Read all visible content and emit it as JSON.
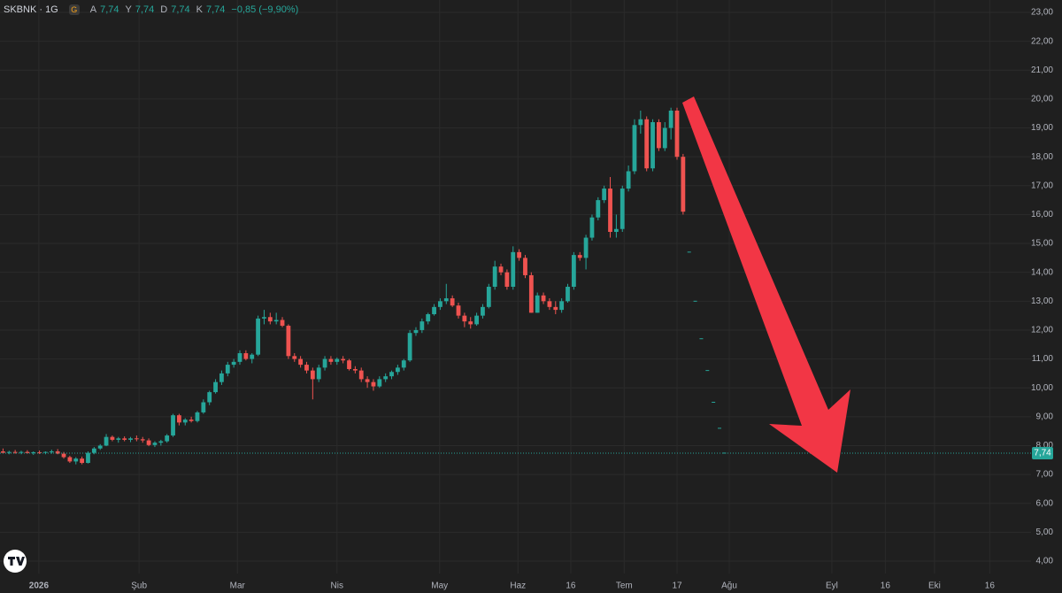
{
  "header": {
    "symbol": "SKBNK · 1G",
    "badge": "G",
    "ohlc": [
      {
        "label": "A",
        "value": "7,74"
      },
      {
        "label": "Y",
        "value": "7,74"
      },
      {
        "label": "D",
        "value": "7,74"
      },
      {
        "label": "K",
        "value": "7,74"
      }
    ],
    "change": "−0,85 (−9,90%)"
  },
  "chart_data": {
    "type": "candlestick",
    "up_color": "#26a69a",
    "down_color": "#ef5350",
    "xlim": [
      -0.5,
      169.3
    ],
    "ylim": [
      3.57,
      23.43
    ],
    "grid": true,
    "xticks": [
      {
        "value": 5.9,
        "label": "2026"
      },
      {
        "value": 22.4,
        "label": "Şub"
      },
      {
        "value": 38.6,
        "label": "Mar"
      },
      {
        "value": 55.0,
        "label": "Nis"
      },
      {
        "value": 71.9,
        "label": "May"
      },
      {
        "value": 84.8,
        "label": "Haz"
      },
      {
        "value": 93.5,
        "label": "16"
      },
      {
        "value": 102.3,
        "label": "Tem"
      },
      {
        "value": 111.0,
        "label": "17"
      },
      {
        "value": 119.6,
        "label": "Ağu"
      },
      {
        "value": 136.5,
        "label": "Eyl"
      },
      {
        "value": 145.3,
        "label": "16"
      },
      {
        "value": 153.4,
        "label": "Eki"
      },
      {
        "value": 162.5,
        "label": "16"
      }
    ],
    "yticks": [
      {
        "value": 4,
        "label": "4,00"
      },
      {
        "value": 5,
        "label": "5,00"
      },
      {
        "value": 6,
        "label": "6,00"
      },
      {
        "value": 7,
        "label": "7,00"
      },
      {
        "value": 8,
        "label": "8,00"
      },
      {
        "value": 9,
        "label": "9,00"
      },
      {
        "value": 10,
        "label": "10,00"
      },
      {
        "value": 11,
        "label": "11,00"
      },
      {
        "value": 12,
        "label": "12,00"
      },
      {
        "value": 13,
        "label": "13,00"
      },
      {
        "value": 14,
        "label": "14,00"
      },
      {
        "value": 15,
        "label": "15,00"
      },
      {
        "value": 16,
        "label": "16,00"
      },
      {
        "value": 17,
        "label": "17,00"
      },
      {
        "value": 18,
        "label": "18,00"
      },
      {
        "value": 19,
        "label": "19,00"
      },
      {
        "value": 20,
        "label": "20,00"
      },
      {
        "value": 21,
        "label": "21,00"
      },
      {
        "value": 22,
        "label": "22,00"
      },
      {
        "value": 23,
        "label": "23,00"
      }
    ],
    "last_price": {
      "value": 7.74,
      "label": "7,74"
    },
    "projection": {
      "x": [
        113,
        114,
        115,
        116,
        117,
        118,
        118.8
      ],
      "values": [
        14.7,
        13.0,
        11.7,
        10.6,
        9.5,
        8.6,
        7.74
      ]
    },
    "candles": [
      [
        7.8,
        7.9,
        7.72,
        7.75
      ],
      [
        7.75,
        7.82,
        7.7,
        7.78
      ],
      [
        7.78,
        7.85,
        7.72,
        7.76
      ],
      [
        7.76,
        7.82,
        7.7,
        7.78
      ],
      [
        7.78,
        7.84,
        7.72,
        7.74
      ],
      [
        7.74,
        7.8,
        7.68,
        7.77
      ],
      [
        7.77,
        7.83,
        7.71,
        7.75
      ],
      [
        7.75,
        7.8,
        7.7,
        7.78
      ],
      [
        7.78,
        7.86,
        7.72,
        7.8
      ],
      [
        7.8,
        7.88,
        7.7,
        7.72
      ],
      [
        7.72,
        7.78,
        7.55,
        7.6
      ],
      [
        7.6,
        7.65,
        7.4,
        7.45
      ],
      [
        7.45,
        7.6,
        7.35,
        7.55
      ],
      [
        7.55,
        7.62,
        7.35,
        7.4
      ],
      [
        7.4,
        7.8,
        7.38,
        7.75
      ],
      [
        7.75,
        7.95,
        7.7,
        7.9
      ],
      [
        7.9,
        8.05,
        7.85,
        8.0
      ],
      [
        8.0,
        8.4,
        7.98,
        8.3
      ],
      [
        8.3,
        8.35,
        8.15,
        8.2
      ],
      [
        8.2,
        8.3,
        8.1,
        8.25
      ],
      [
        8.25,
        8.32,
        8.15,
        8.2
      ],
      [
        8.2,
        8.3,
        8.12,
        8.25
      ],
      [
        8.25,
        8.35,
        8.15,
        8.22
      ],
      [
        8.22,
        8.3,
        8.1,
        8.18
      ],
      [
        8.18,
        8.25,
        7.98,
        8.02
      ],
      [
        8.02,
        8.15,
        7.95,
        8.1
      ],
      [
        8.1,
        8.2,
        8.0,
        8.15
      ],
      [
        8.15,
        8.4,
        8.1,
        8.35
      ],
      [
        8.35,
        9.1,
        8.3,
        9.05
      ],
      [
        9.05,
        9.1,
        8.7,
        8.8
      ],
      [
        8.8,
        8.95,
        8.7,
        8.9
      ],
      [
        8.9,
        9.0,
        8.8,
        8.85
      ],
      [
        8.85,
        9.2,
        8.8,
        9.15
      ],
      [
        9.15,
        9.6,
        9.1,
        9.5
      ],
      [
        9.5,
        9.9,
        9.4,
        9.85
      ],
      [
        9.85,
        10.3,
        9.8,
        10.2
      ],
      [
        10.2,
        10.6,
        10.1,
        10.5
      ],
      [
        10.5,
        10.9,
        10.4,
        10.8
      ],
      [
        10.8,
        11.0,
        10.7,
        10.9
      ],
      [
        10.9,
        11.3,
        10.8,
        11.2
      ],
      [
        11.2,
        11.3,
        10.95,
        11.0
      ],
      [
        11.0,
        11.2,
        10.85,
        11.15
      ],
      [
        11.15,
        12.5,
        11.1,
        12.4
      ],
      [
        12.4,
        12.7,
        12.2,
        12.45
      ],
      [
        12.45,
        12.6,
        12.2,
        12.3
      ],
      [
        12.3,
        12.6,
        12.2,
        12.35
      ],
      [
        12.35,
        12.45,
        12.1,
        12.15
      ],
      [
        12.15,
        12.2,
        11.0,
        11.1
      ],
      [
        11.1,
        11.2,
        10.9,
        11.0
      ],
      [
        11.0,
        11.1,
        10.7,
        10.8
      ],
      [
        10.8,
        10.9,
        10.5,
        10.6
      ],
      [
        10.6,
        10.7,
        9.6,
        10.3
      ],
      [
        10.3,
        10.8,
        10.2,
        10.7
      ],
      [
        10.7,
        11.1,
        10.6,
        11.0
      ],
      [
        11.0,
        11.1,
        10.8,
        10.9
      ],
      [
        10.9,
        11.05,
        10.8,
        11.0
      ],
      [
        11.0,
        11.1,
        10.85,
        10.95
      ],
      [
        10.95,
        11.0,
        10.6,
        10.65
      ],
      [
        10.65,
        10.75,
        10.5,
        10.6
      ],
      [
        10.6,
        10.7,
        10.2,
        10.3
      ],
      [
        10.3,
        10.4,
        10.0,
        10.2
      ],
      [
        10.2,
        10.3,
        9.9,
        10.05
      ],
      [
        10.05,
        10.4,
        10.0,
        10.3
      ],
      [
        10.3,
        10.5,
        10.2,
        10.4
      ],
      [
        10.4,
        10.6,
        10.3,
        10.55
      ],
      [
        10.55,
        10.8,
        10.45,
        10.7
      ],
      [
        10.7,
        11.0,
        10.6,
        10.95
      ],
      [
        10.95,
        12.0,
        10.9,
        11.9
      ],
      [
        11.9,
        12.1,
        11.8,
        12.0
      ],
      [
        12.0,
        12.4,
        11.9,
        12.3
      ],
      [
        12.3,
        12.6,
        12.2,
        12.55
      ],
      [
        12.55,
        12.9,
        12.5,
        12.8
      ],
      [
        12.8,
        13.1,
        12.7,
        13.0
      ],
      [
        13.0,
        13.6,
        12.9,
        13.1
      ],
      [
        13.1,
        13.2,
        12.8,
        12.85
      ],
      [
        12.85,
        12.95,
        12.4,
        12.5
      ],
      [
        12.5,
        12.6,
        12.1,
        12.3
      ],
      [
        12.3,
        12.45,
        12.05,
        12.2
      ],
      [
        12.2,
        12.6,
        12.15,
        12.5
      ],
      [
        12.5,
        12.9,
        12.4,
        12.8
      ],
      [
        12.8,
        13.6,
        12.75,
        13.5
      ],
      [
        13.5,
        14.4,
        13.4,
        14.2
      ],
      [
        14.2,
        14.3,
        13.9,
        14.0
      ],
      [
        14.0,
        14.1,
        13.4,
        13.5
      ],
      [
        13.5,
        14.9,
        13.4,
        14.7
      ],
      [
        14.7,
        14.8,
        14.4,
        14.5
      ],
      [
        14.5,
        14.6,
        13.8,
        13.9
      ],
      [
        13.9,
        14.0,
        12.6,
        12.6
      ],
      [
        12.6,
        13.3,
        12.6,
        13.2
      ],
      [
        13.2,
        13.3,
        12.9,
        13.0
      ],
      [
        13.0,
        13.1,
        12.7,
        12.8
      ],
      [
        12.8,
        13.0,
        12.55,
        12.7
      ],
      [
        12.7,
        13.1,
        12.6,
        13.0
      ],
      [
        13.0,
        13.6,
        12.95,
        13.5
      ],
      [
        13.5,
        14.7,
        13.4,
        14.6
      ],
      [
        14.6,
        14.7,
        14.4,
        14.5
      ],
      [
        14.5,
        15.3,
        14.1,
        15.2
      ],
      [
        15.2,
        16.0,
        15.1,
        15.9
      ],
      [
        15.9,
        16.6,
        15.8,
        16.5
      ],
      [
        16.5,
        17.0,
        16.4,
        16.9
      ],
      [
        16.9,
        17.3,
        15.2,
        15.4
      ],
      [
        15.4,
        16.0,
        15.2,
        15.5
      ],
      [
        15.5,
        17.0,
        15.4,
        16.9
      ],
      [
        16.9,
        17.7,
        16.8,
        17.5
      ],
      [
        17.5,
        19.3,
        17.4,
        19.1
      ],
      [
        19.1,
        19.6,
        18.8,
        19.3
      ],
      [
        19.3,
        19.4,
        17.5,
        17.6
      ],
      [
        17.6,
        19.3,
        17.5,
        19.2
      ],
      [
        19.2,
        19.3,
        18.2,
        18.3
      ],
      [
        18.3,
        19.2,
        18.2,
        19.0
      ],
      [
        19.0,
        19.7,
        18.6,
        19.6
      ],
      [
        19.6,
        19.7,
        17.9,
        18.0
      ],
      [
        18.0,
        18.1,
        16.0,
        16.1
      ]
    ]
  }
}
